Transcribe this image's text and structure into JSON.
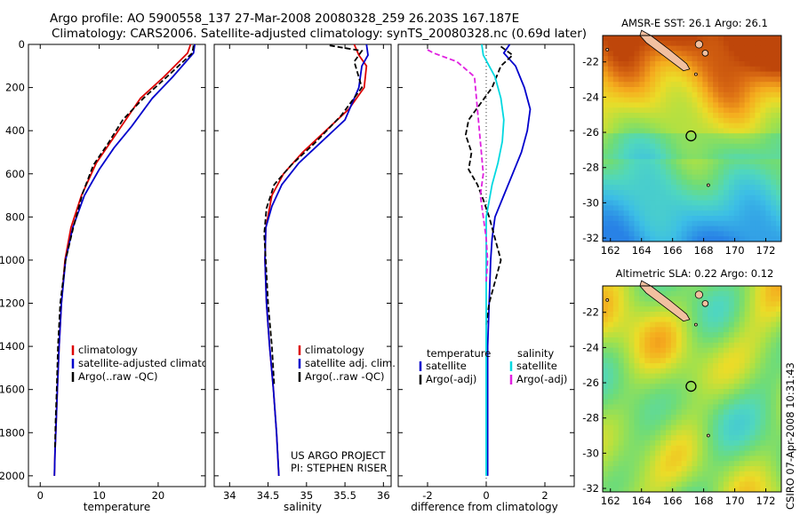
{
  "header": {
    "line1": "Argo profile: AO 5900558_137 27-Mar-2008 20080328_259 26.203S 167.187E",
    "line2": "Climatology: CARS2006. Satellite-adjusted climatology: synTS_20080328.nc (0.69d later)"
  },
  "sidebar_text": "CSIRO 07-Apr-2008 10:31:43",
  "colors": {
    "red": "#dd0000",
    "blue": "#0000cc",
    "black": "#000000",
    "cyan": "#00d8e0",
    "magenta": "#e020e0",
    "land": "#f2c0a0"
  },
  "chart_data": [
    {
      "type": "line",
      "name": "temperature",
      "xlabel": "temperature",
      "xlim": [
        -2,
        28
      ],
      "ylim": [
        2050,
        0
      ],
      "xticks": [
        0,
        10,
        20
      ],
      "yticks": [
        0,
        200,
        400,
        600,
        800,
        1000,
        1200,
        1400,
        1600,
        1800,
        2000
      ],
      "legend": [
        "climatology",
        "satellite-adjusted climatology",
        "Argo(..raw -QC)"
      ],
      "series": [
        {
          "name": "climatology",
          "color": "red",
          "dash": "",
          "x": [
            25.5,
            25.0,
            21.0,
            17.0,
            14.5,
            12.0,
            9.5,
            7.0,
            5.2,
            4.2,
            3.6,
            3.2,
            2.9,
            2.7,
            2.5,
            2.4
          ],
          "y": [
            0,
            40,
            150,
            250,
            350,
            450,
            550,
            700,
            850,
            1000,
            1200,
            1400,
            1600,
            1750,
            1900,
            2000
          ]
        },
        {
          "name": "satellite-adjusted climatology",
          "color": "blue",
          "dash": "",
          "x": [
            26.2,
            26.0,
            22.5,
            19.0,
            15.5,
            12.5,
            10.0,
            7.5,
            5.5,
            4.3,
            3.6,
            3.2,
            2.9,
            2.7,
            2.5,
            2.4
          ],
          "y": [
            0,
            40,
            150,
            250,
            380,
            480,
            580,
            700,
            850,
            1000,
            1200,
            1400,
            1600,
            1750,
            1900,
            2000
          ]
        },
        {
          "name": "Argo(..raw -QC)",
          "color": "black",
          "dash": "6,3",
          "x": [
            26.0,
            25.8,
            21.5,
            17.5,
            14.0,
            11.5,
            9.0,
            7.2,
            5.6,
            4.3,
            3.4,
            3.0,
            2.8,
            2.6,
            2.5
          ],
          "y": [
            5,
            40,
            150,
            250,
            350,
            460,
            560,
            690,
            850,
            1000,
            1200,
            1400,
            1600,
            1750,
            1880
          ]
        }
      ]
    },
    {
      "type": "line",
      "name": "salinity",
      "xlabel": "salinity",
      "xlim": [
        33.8,
        36.1
      ],
      "ylim": [
        2050,
        0
      ],
      "xticks": [
        34,
        34.5,
        35,
        35.5,
        36
      ],
      "legend": [
        "climatology",
        "satellite adj. clim.",
        "Argo(..raw -QC)"
      ],
      "annotations": [
        "US ARGO PROJECT",
        "PI: STEPHEN RISER"
      ],
      "series": [
        {
          "name": "climatology",
          "color": "red",
          "dash": "",
          "x": [
            35.62,
            35.68,
            35.78,
            35.75,
            35.55,
            35.25,
            34.95,
            34.7,
            34.55,
            34.47,
            34.46,
            34.48,
            34.52,
            34.57,
            34.61,
            34.64
          ],
          "y": [
            0,
            50,
            100,
            200,
            300,
            400,
            500,
            600,
            700,
            850,
            1000,
            1200,
            1400,
            1600,
            1800,
            2000
          ]
        },
        {
          "name": "satellite adj. clim.",
          "color": "blue",
          "dash": "",
          "x": [
            35.78,
            35.8,
            35.72,
            35.68,
            35.5,
            35.2,
            34.9,
            34.68,
            34.55,
            34.47,
            34.46,
            34.48,
            34.52,
            34.57,
            34.61,
            34.64
          ],
          "y": [
            0,
            50,
            100,
            200,
            350,
            450,
            550,
            650,
            750,
            850,
            1000,
            1200,
            1400,
            1600,
            1800,
            2000
          ]
        },
        {
          "name": "Argo(..raw -QC)",
          "color": "black",
          "dash": "6,3",
          "x": [
            35.3,
            35.72,
            35.62,
            35.72,
            35.45,
            35.1,
            34.8,
            34.58,
            34.48,
            34.45,
            34.47,
            34.5,
            34.55,
            34.58
          ],
          "y": [
            5,
            30,
            80,
            200,
            330,
            460,
            560,
            650,
            760,
            880,
            1000,
            1200,
            1400,
            1580
          ]
        }
      ]
    },
    {
      "type": "line",
      "name": "difference",
      "xlabel": "difference from climatology",
      "xlim": [
        -3,
        3
      ],
      "ylim": [
        2050,
        0
      ],
      "xticks": [
        -2,
        0,
        2
      ],
      "legend_headers": [
        "temperature",
        "salinity"
      ],
      "legend": [
        "satellite",
        "Argo(-adj)",
        "satellite",
        "Argo(-adj)"
      ],
      "series": [
        {
          "name": "temperature satellite",
          "color": "blue",
          "dash": "",
          "x": [
            0.8,
            0.6,
            1.0,
            1.3,
            1.5,
            1.4,
            1.2,
            0.9,
            0.6,
            0.3,
            0.2,
            0.15,
            0.1,
            0.05,
            0.05,
            0.05,
            0.05
          ],
          "y": [
            0,
            40,
            100,
            200,
            300,
            400,
            500,
            600,
            700,
            800,
            900,
            1000,
            1200,
            1400,
            1600,
            1800,
            2000
          ]
        },
        {
          "name": "temperature Argo(-adj)",
          "color": "black",
          "dash": "6,3",
          "x": [
            0.5,
            0.9,
            0.5,
            0.2,
            -0.6,
            -0.7,
            -0.5,
            -0.6,
            -0.3,
            -0.1,
            0.1,
            0.3,
            0.5,
            0.3,
            0.1,
            0.0
          ],
          "y": [
            10,
            50,
            100,
            200,
            350,
            420,
            500,
            580,
            650,
            720,
            800,
            900,
            1000,
            1100,
            1200,
            1300
          ]
        },
        {
          "name": "salinity satellite",
          "color": "cyan",
          "dash": "",
          "x": [
            -0.15,
            -0.1,
            0.3,
            0.5,
            0.6,
            0.55,
            0.4,
            0.2,
            0.0,
            0.0,
            0.0,
            0.0,
            0.0,
            0.0
          ],
          "y": [
            0,
            50,
            150,
            250,
            350,
            450,
            550,
            650,
            800,
            1000,
            1200,
            1500,
            1800,
            2000
          ]
        },
        {
          "name": "salinity Argo(-adj)",
          "color": "magenta",
          "dash": "6,3",
          "x": [
            -2.0,
            -1.8,
            -1.0,
            -0.4,
            -0.3,
            -0.2,
            -0.1,
            -0.2,
            -0.1,
            0.0,
            0.05,
            0.0
          ],
          "y": [
            25,
            40,
            80,
            150,
            300,
            450,
            600,
            700,
            800,
            900,
            1000,
            1100
          ]
        }
      ]
    },
    {
      "type": "heatmap",
      "name": "sst-map",
      "title": "AMSR-E SST: 26.1 Argo: 26.1",
      "xlim": [
        161.5,
        173
      ],
      "ylim": [
        -32.2,
        -20.5
      ],
      "xticks": [
        162,
        164,
        166,
        168,
        170,
        172
      ],
      "yticks": [
        -22,
        -24,
        -26,
        -28,
        -30,
        -32
      ],
      "marker": {
        "lon": 167.187,
        "lat": -26.203
      }
    },
    {
      "type": "heatmap",
      "name": "sla-map",
      "title": "Altimetric SLA: 0.22 Argo: 0.12",
      "xlim": [
        161.5,
        173
      ],
      "ylim": [
        -32.2,
        -20.5
      ],
      "xticks": [
        162,
        164,
        166,
        168,
        170,
        172
      ],
      "yticks": [
        -22,
        -24,
        -26,
        -28,
        -30,
        -32
      ],
      "marker": {
        "lon": 167.187,
        "lat": -26.203
      }
    }
  ]
}
